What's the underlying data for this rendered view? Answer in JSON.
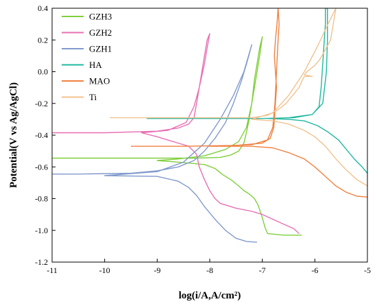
{
  "chart_data": {
    "type": "line",
    "xlabel": "log(i/A,A/cm²)",
    "ylabel": "Potential(V vs Ag/AgCl)",
    "xlim": [
      -11,
      -5
    ],
    "ylim": [
      -1.2,
      0.4
    ],
    "xticks": [
      -11,
      -10,
      -9,
      -8,
      -7,
      -6,
      -5
    ],
    "yticks": [
      -1.2,
      -1.0,
      -0.8,
      -0.6,
      -0.4,
      -0.2,
      0.0,
      0.2,
      0.4
    ],
    "ytick_labels": [
      "-1.2",
      "-1.0",
      "-0.8",
      "-0.6",
      "-0.4",
      "-0.2",
      "0.0",
      "0.2",
      "0.4"
    ],
    "grid": false,
    "legend_position": "top-left",
    "series": [
      {
        "name": "GZH3",
        "color": "#7fcf3a",
        "points": [
          [
            -11,
            -0.545
          ],
          [
            -9,
            -0.545
          ],
          [
            -8.3,
            -0.545
          ],
          [
            -7.8,
            -0.54
          ],
          [
            -7.6,
            -0.525
          ],
          [
            -7.45,
            -0.5
          ],
          [
            -7.35,
            -0.45
          ],
          [
            -7.3,
            -0.38
          ],
          [
            -7.25,
            -0.3
          ],
          [
            -7.2,
            -0.2
          ],
          [
            -7.15,
            -0.1
          ],
          [
            -7.1,
            0.0
          ],
          [
            -7.05,
            0.1
          ],
          [
            -7.0,
            0.22
          ],
          [
            -7.05,
            0.15
          ],
          [
            -7.15,
            -0.05
          ],
          [
            -7.2,
            -0.2
          ],
          [
            -7.3,
            -0.35
          ],
          [
            -7.45,
            -0.44
          ],
          [
            -7.7,
            -0.49
          ],
          [
            -8.1,
            -0.53
          ],
          [
            -8.6,
            -0.55
          ],
          [
            -9.0,
            -0.56
          ],
          [
            -8.6,
            -0.57
          ],
          [
            -8.1,
            -0.585
          ],
          [
            -7.9,
            -0.61
          ],
          [
            -7.75,
            -0.65
          ],
          [
            -7.6,
            -0.68
          ],
          [
            -7.45,
            -0.72
          ],
          [
            -7.35,
            -0.75
          ],
          [
            -7.25,
            -0.77
          ],
          [
            -7.15,
            -0.8
          ],
          [
            -7.08,
            -0.84
          ],
          [
            -7.05,
            -0.87
          ],
          [
            -7.0,
            -0.92
          ],
          [
            -6.95,
            -0.98
          ],
          [
            -6.9,
            -1.02
          ],
          [
            -6.6,
            -1.03
          ],
          [
            -6.25,
            -1.03
          ]
        ]
      },
      {
        "name": "GZH2",
        "color": "#e86fb2",
        "points": [
          [
            -11,
            -0.385
          ],
          [
            -10,
            -0.385
          ],
          [
            -9.0,
            -0.375
          ],
          [
            -8.6,
            -0.355
          ],
          [
            -8.4,
            -0.33
          ],
          [
            -8.3,
            -0.29
          ],
          [
            -8.25,
            -0.2
          ],
          [
            -8.2,
            -0.1
          ],
          [
            -8.15,
            0.0
          ],
          [
            -8.1,
            0.1
          ],
          [
            -8.05,
            0.2
          ],
          [
            -8.0,
            0.24
          ],
          [
            -8.05,
            0.15
          ],
          [
            -8.1,
            0.05
          ],
          [
            -8.2,
            -0.1
          ],
          [
            -8.3,
            -0.22
          ],
          [
            -8.45,
            -0.32
          ],
          [
            -8.8,
            -0.37
          ],
          [
            -9.3,
            -0.385
          ],
          [
            -9.0,
            -0.41
          ],
          [
            -8.7,
            -0.44
          ],
          [
            -8.4,
            -0.47
          ],
          [
            -8.25,
            -0.52
          ],
          [
            -8.2,
            -0.6
          ],
          [
            -8.1,
            -0.68
          ],
          [
            -8.0,
            -0.75
          ],
          [
            -7.9,
            -0.8
          ],
          [
            -7.8,
            -0.83
          ],
          [
            -7.5,
            -0.86
          ],
          [
            -7.2,
            -0.88
          ],
          [
            -7.0,
            -0.9
          ],
          [
            -6.8,
            -0.93
          ],
          [
            -6.6,
            -0.96
          ],
          [
            -6.4,
            -0.99
          ],
          [
            -6.3,
            -1.02
          ]
        ]
      },
      {
        "name": "GZH1",
        "color": "#8199cc",
        "points": [
          [
            -11,
            -0.645
          ],
          [
            -10.5,
            -0.645
          ],
          [
            -9.5,
            -0.64
          ],
          [
            -9.0,
            -0.625
          ],
          [
            -8.6,
            -0.6
          ],
          [
            -8.3,
            -0.56
          ],
          [
            -8.1,
            -0.5
          ],
          [
            -7.9,
            -0.42
          ],
          [
            -7.7,
            -0.32
          ],
          [
            -7.55,
            -0.2
          ],
          [
            -7.4,
            -0.06
          ],
          [
            -7.3,
            0.05
          ],
          [
            -7.2,
            0.17
          ],
          [
            -7.35,
            0.0
          ],
          [
            -7.55,
            -0.15
          ],
          [
            -7.8,
            -0.3
          ],
          [
            -8.1,
            -0.45
          ],
          [
            -8.5,
            -0.57
          ],
          [
            -9.0,
            -0.63
          ],
          [
            -10.0,
            -0.655
          ],
          [
            -9.0,
            -0.66
          ],
          [
            -8.6,
            -0.69
          ],
          [
            -8.4,
            -0.73
          ],
          [
            -8.25,
            -0.78
          ],
          [
            -8.1,
            -0.85
          ],
          [
            -7.9,
            -0.93
          ],
          [
            -7.7,
            -1.0
          ],
          [
            -7.5,
            -1.05
          ],
          [
            -7.3,
            -1.07
          ],
          [
            -7.1,
            -1.075
          ]
        ]
      },
      {
        "name": "HA",
        "color": "#1fb8a0",
        "points": [
          [
            -9.2,
            -0.295
          ],
          [
            -8,
            -0.295
          ],
          [
            -7,
            -0.295
          ],
          [
            -6.4,
            -0.29
          ],
          [
            -6.05,
            -0.27
          ],
          [
            -5.92,
            -0.22
          ],
          [
            -5.88,
            -0.1
          ],
          [
            -5.86,
            0.0
          ],
          [
            -5.84,
            0.1
          ],
          [
            -5.82,
            0.2
          ],
          [
            -5.8,
            0.3
          ],
          [
            -5.8,
            0.4
          ],
          [
            -5.76,
            0.4
          ],
          [
            -5.76,
            0.2
          ],
          [
            -5.78,
            0.0
          ],
          [
            -5.85,
            -0.2
          ],
          [
            -6.05,
            -0.27
          ],
          [
            -6.5,
            -0.29
          ],
          [
            -6.9,
            -0.295
          ],
          [
            -6.5,
            -0.3
          ],
          [
            -6.2,
            -0.31
          ],
          [
            -5.95,
            -0.34
          ],
          [
            -5.75,
            -0.38
          ],
          [
            -5.55,
            -0.43
          ],
          [
            -5.4,
            -0.49
          ],
          [
            -5.25,
            -0.55
          ],
          [
            -5.1,
            -0.6
          ],
          [
            -5.0,
            -0.64
          ]
        ]
      },
      {
        "name": "MAO",
        "color": "#f08141",
        "points": [
          [
            -9.5,
            -0.47
          ],
          [
            -8.5,
            -0.47
          ],
          [
            -7.5,
            -0.465
          ],
          [
            -7.0,
            -0.45
          ],
          [
            -6.85,
            -0.42
          ],
          [
            -6.78,
            -0.35
          ],
          [
            -6.75,
            -0.2
          ],
          [
            -6.73,
            -0.1
          ],
          [
            -6.75,
            0.0
          ],
          [
            -6.77,
            0.1
          ],
          [
            -6.75,
            0.2
          ],
          [
            -6.72,
            0.3
          ],
          [
            -6.7,
            0.4
          ],
          [
            -6.68,
            0.3
          ],
          [
            -6.7,
            0.2
          ],
          [
            -6.73,
            0.0
          ],
          [
            -6.76,
            -0.2
          ],
          [
            -6.8,
            -0.35
          ],
          [
            -6.9,
            -0.43
          ],
          [
            -7.2,
            -0.46
          ],
          [
            -8.0,
            -0.47
          ],
          [
            -7.2,
            -0.47
          ],
          [
            -6.8,
            -0.48
          ],
          [
            -6.5,
            -0.51
          ],
          [
            -6.2,
            -0.55
          ],
          [
            -6.0,
            -0.6
          ],
          [
            -5.8,
            -0.66
          ],
          [
            -5.6,
            -0.72
          ],
          [
            -5.4,
            -0.76
          ],
          [
            -5.2,
            -0.785
          ],
          [
            -5.0,
            -0.79
          ]
        ]
      },
      {
        "name": "Ti",
        "color": "#f2c28f",
        "points": [
          [
            -9.9,
            -0.29
          ],
          [
            -8.5,
            -0.29
          ],
          [
            -7.2,
            -0.29
          ],
          [
            -6.9,
            -0.275
          ],
          [
            -6.7,
            -0.24
          ],
          [
            -6.55,
            -0.2
          ],
          [
            -6.4,
            -0.14
          ],
          [
            -6.3,
            -0.1
          ],
          [
            -6.25,
            -0.06
          ],
          [
            -6.2,
            -0.03
          ],
          [
            -6.05,
            -0.03
          ],
          [
            -6.2,
            -0.02
          ],
          [
            -6.15,
            0.0
          ],
          [
            -6.0,
            0.04
          ],
          [
            -5.9,
            0.08
          ],
          [
            -5.8,
            0.14
          ],
          [
            -5.7,
            0.2
          ],
          [
            -5.65,
            0.3
          ],
          [
            -5.6,
            0.4
          ],
          [
            -5.75,
            0.3
          ],
          [
            -5.95,
            0.16
          ],
          [
            -6.2,
            0.0
          ],
          [
            -6.5,
            -0.15
          ],
          [
            -6.8,
            -0.26
          ],
          [
            -7.2,
            -0.3
          ],
          [
            -6.8,
            -0.31
          ],
          [
            -6.5,
            -0.33
          ],
          [
            -6.2,
            -0.37
          ],
          [
            -6.0,
            -0.41
          ],
          [
            -5.8,
            -0.47
          ],
          [
            -5.6,
            -0.55
          ],
          [
            -5.4,
            -0.62
          ],
          [
            -5.2,
            -0.68
          ],
          [
            -5.0,
            -0.72
          ]
        ]
      }
    ]
  }
}
